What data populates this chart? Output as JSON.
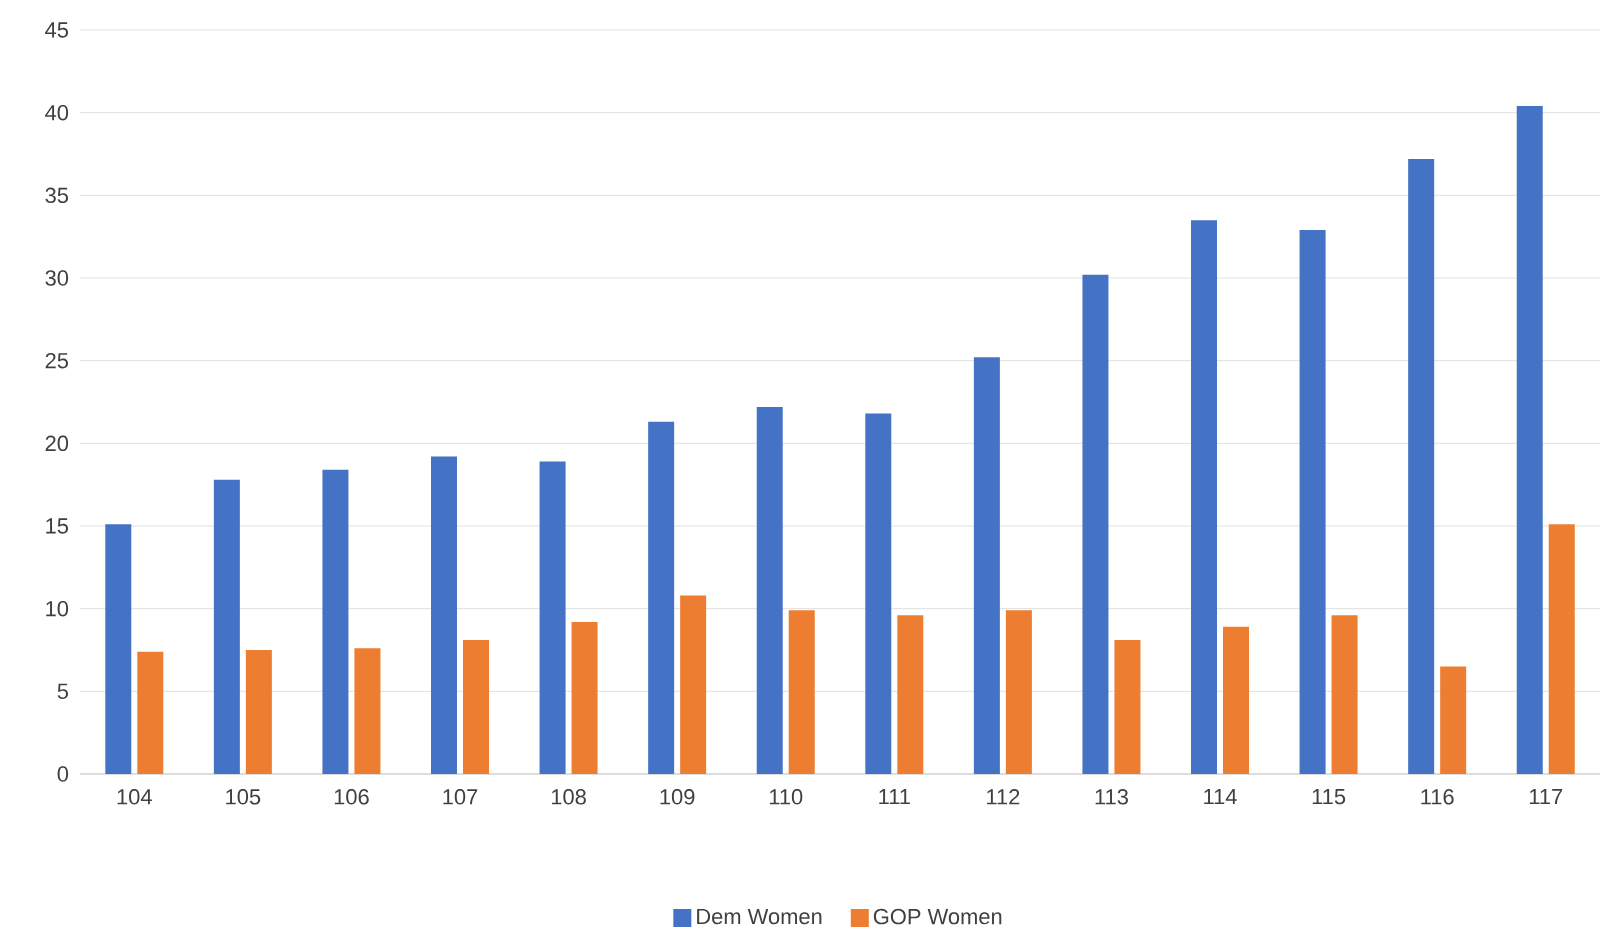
{
  "chart_data": {
    "type": "bar",
    "categories": [
      "104",
      "105",
      "106",
      "107",
      "108",
      "109",
      "110",
      "111",
      "112",
      "113",
      "114",
      "115",
      "116",
      "117"
    ],
    "series": [
      {
        "name": "Dem Women",
        "color": "#4472c4",
        "values": [
          15.1,
          17.8,
          18.4,
          19.2,
          18.9,
          21.3,
          22.2,
          21.8,
          25.2,
          30.2,
          33.5,
          32.9,
          37.2,
          40.4
        ]
      },
      {
        "name": "GOP Women",
        "color": "#ed7d31",
        "values": [
          7.4,
          7.5,
          7.6,
          8.1,
          9.2,
          10.8,
          9.9,
          9.6,
          9.9,
          8.1,
          8.9,
          9.6,
          6.5,
          15.1
        ]
      }
    ],
    "ylim": [
      0,
      45
    ],
    "yticks": [
      0,
      5,
      10,
      15,
      20,
      25,
      30,
      35,
      40,
      45
    ],
    "grid": "y",
    "legend": "bottom"
  }
}
